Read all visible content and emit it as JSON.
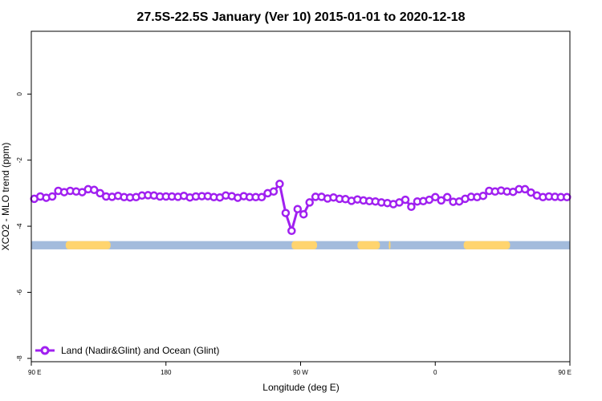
{
  "chart_data": {
    "type": "line",
    "title": "27.5S-22.5S January (Ver 10)   2015-01-01 to 2020-12-18",
    "xlabel": "Longitude (deg E)",
    "ylabel": "XCO2 - MLO trend (ppm)",
    "xlim": [
      90,
      450
    ],
    "ylim": [
      -8.1,
      1.9
    ],
    "x_ticks": [
      {
        "value": 90,
        "label": "90 E"
      },
      {
        "value": 180,
        "label": "180"
      },
      {
        "value": 270,
        "label": "90 W"
      },
      {
        "value": 360,
        "label": "0"
      },
      {
        "value": 450,
        "label": "90 E"
      },
      {
        "value": 540,
        "label": "180"
      }
    ],
    "y_ticks": [
      {
        "value": 0,
        "label": "0"
      },
      {
        "value": -2,
        "label": "-2"
      },
      {
        "value": -4,
        "label": "-4"
      },
      {
        "value": -6,
        "label": "-6"
      },
      {
        "value": -8,
        "label": "-8"
      }
    ],
    "colors": {
      "series": "#a020f0",
      "ocean": "#a3bbdc",
      "land": "#ffd46e"
    },
    "surface_band": {
      "y_top": -4.45,
      "y_bottom": -4.7,
      "land_segments": [
        [
          113,
          143
        ],
        [
          264,
          281
        ],
        [
          308,
          323
        ],
        [
          329,
          330
        ],
        [
          379,
          410
        ]
      ]
    },
    "series": [
      {
        "name": "Land (Nadir&Glint) and Ocean (Glint)",
        "x": [
          92,
          96,
          100,
          104,
          108,
          112,
          116,
          120,
          124,
          128,
          132,
          136,
          140,
          144,
          148,
          152,
          156,
          160,
          164,
          168,
          172,
          176,
          180,
          184,
          188,
          192,
          196,
          200,
          204,
          208,
          212,
          216,
          220,
          224,
          228,
          232,
          236,
          240,
          244,
          248,
          252,
          256,
          260,
          264,
          268,
          272,
          276,
          280,
          284,
          288,
          292,
          296,
          300,
          304,
          308,
          312,
          316,
          320,
          324,
          328,
          332,
          336,
          340,
          344,
          348,
          352,
          356,
          360,
          364,
          368,
          372,
          376,
          380,
          384,
          388,
          392,
          396,
          400,
          404,
          408,
          412,
          416,
          420,
          424,
          428,
          432,
          436,
          440,
          444,
          448
        ],
        "y": [
          -3.17,
          -3.1,
          -3.14,
          -3.1,
          -2.93,
          -2.97,
          -2.93,
          -2.95,
          -2.97,
          -2.88,
          -2.9,
          -3.0,
          -3.1,
          -3.11,
          -3.08,
          -3.12,
          -3.13,
          -3.12,
          -3.07,
          -3.06,
          -3.07,
          -3.1,
          -3.1,
          -3.1,
          -3.11,
          -3.08,
          -3.13,
          -3.1,
          -3.09,
          -3.09,
          -3.12,
          -3.13,
          -3.07,
          -3.09,
          -3.14,
          -3.09,
          -3.12,
          -3.12,
          -3.12,
          -3.0,
          -2.95,
          -2.72,
          -3.6,
          -4.14,
          -3.48,
          -3.64,
          -3.28,
          -3.11,
          -3.11,
          -3.16,
          -3.13,
          -3.17,
          -3.18,
          -3.23,
          -3.19,
          -3.22,
          -3.24,
          -3.25,
          -3.28,
          -3.3,
          -3.33,
          -3.28,
          -3.2,
          -3.41,
          -3.25,
          -3.24,
          -3.2,
          -3.12,
          -3.22,
          -3.12,
          -3.26,
          -3.25,
          -3.17,
          -3.11,
          -3.12,
          -3.08,
          -2.93,
          -2.95,
          -2.92,
          -2.95,
          -2.96,
          -2.88,
          -2.88,
          -2.98,
          -3.07,
          -3.12,
          -3.1,
          -3.11,
          -3.12,
          -3.12
        ]
      }
    ],
    "legend": {
      "position": "bottom-left",
      "entries": [
        "Land (Nadir&Glint) and Ocean (Glint)"
      ]
    }
  }
}
